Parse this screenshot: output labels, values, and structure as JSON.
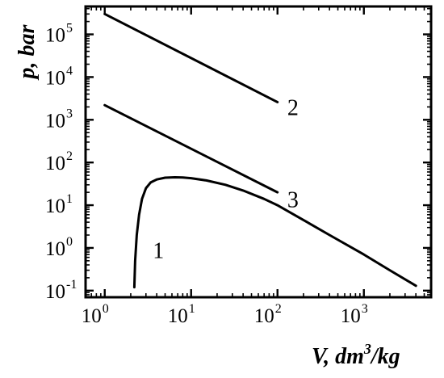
{
  "chart_data": {
    "type": "line",
    "xlabel": {
      "main": "V,",
      "unit_pre": "dm",
      "unit_exp": "3",
      "unit_post": "/kg"
    },
    "ylabel": "p, bar",
    "x_scale": "log",
    "y_scale": "log",
    "xlim": [
      0.6,
      6000
    ],
    "ylim": [
      0.07,
      450000
    ],
    "grid": false,
    "x_ticks": [
      {
        "base": "10",
        "exp": "0",
        "value": 1
      },
      {
        "base": "10",
        "exp": "1",
        "value": 10
      },
      {
        "base": "10",
        "exp": "2",
        "value": 100
      },
      {
        "base": "10",
        "exp": "3",
        "value": 1000
      }
    ],
    "y_ticks": [
      {
        "base": "10",
        "exp": "-1",
        "value": 0.1
      },
      {
        "base": "10",
        "exp": "0",
        "value": 1
      },
      {
        "base": "10",
        "exp": "1",
        "value": 10
      },
      {
        "base": "10",
        "exp": "2",
        "value": 100
      },
      {
        "base": "10",
        "exp": "3",
        "value": 1000
      },
      {
        "base": "10",
        "exp": "4",
        "value": 10000
      },
      {
        "base": "10",
        "exp": "5",
        "value": 100000
      }
    ],
    "series": [
      {
        "label": "1",
        "label_at": [
          3.6,
          0.9
        ],
        "x": [
          2.2,
          2.25,
          2.35,
          2.5,
          2.7,
          3.0,
          3.4,
          4.0,
          5.0,
          6.5,
          8.0,
          10,
          15,
          25,
          40,
          70,
          100,
          200,
          400,
          1000,
          2000,
          4000
        ],
        "y": [
          0.12,
          0.5,
          2.0,
          6.0,
          14,
          25,
          34,
          40,
          44,
          45,
          44.5,
          43,
          38,
          30,
          22,
          14,
          10,
          4.5,
          2.0,
          0.7,
          0.3,
          0.13
        ]
      },
      {
        "label": "2",
        "label_at": [
          130,
          2000
        ],
        "x": [
          1,
          100
        ],
        "y": [
          300000,
          2600
        ]
      },
      {
        "label": "3",
        "label_at": [
          130,
          14
        ],
        "x": [
          1,
          100
        ],
        "y": [
          2200,
          20
        ]
      }
    ]
  }
}
